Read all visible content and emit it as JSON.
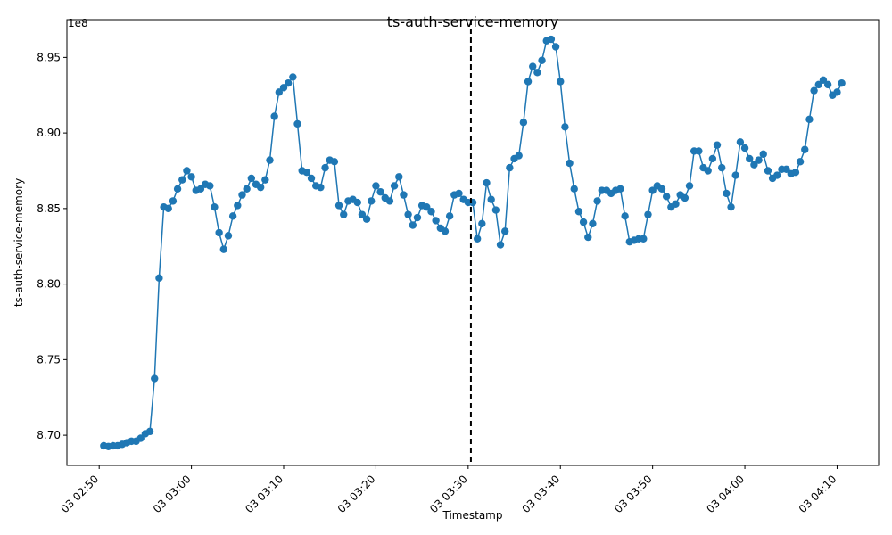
{
  "chart_data": {
    "type": "line",
    "title": "ts-auth-service-memory",
    "xlabel": "Timestamp",
    "ylabel": "ts-auth-service-memory",
    "y_scale_label": "1e8",
    "y_multiplier": 100000000,
    "x_unit": "minutes after 03 02:50",
    "xlim": [
      -3.5,
      84.5
    ],
    "ylim": [
      8.68,
      8.975
    ],
    "x_ticks": [
      0,
      10,
      20,
      30,
      40,
      50,
      60,
      70,
      80
    ],
    "x_tick_labels": [
      "03 02:50",
      "03 03:00",
      "03 03:10",
      "03 03:20",
      "03 03:30",
      "03 03:40",
      "03 03:50",
      "03 04:00",
      "03 04:10"
    ],
    "y_ticks": [
      8.7,
      8.75,
      8.8,
      8.85,
      8.9,
      8.95
    ],
    "y_tick_labels": [
      "8.70",
      "8.75",
      "8.80",
      "8.85",
      "8.90",
      "8.95"
    ],
    "vline_x": 40.3,
    "grid": false,
    "colors": {
      "series": "#1f77b4",
      "vline": "#000000"
    },
    "series": [
      {
        "name": "",
        "x": [
          0.5,
          1.0,
          1.5,
          2.0,
          2.5,
          3.0,
          3.5,
          4.0,
          4.5,
          5.0,
          5.5,
          6.0,
          6.5,
          7.0,
          7.5,
          8.0,
          8.5,
          9.0,
          9.5,
          10.0,
          10.5,
          11.0,
          11.5,
          12.0,
          12.5,
          13.0,
          13.5,
          14.0,
          14.5,
          15.0,
          15.5,
          16.0,
          16.5,
          17.0,
          17.5,
          18.0,
          18.5,
          19.0,
          19.5,
          20.0,
          20.5,
          21.0,
          21.5,
          22.0,
          22.5,
          23.0,
          23.5,
          24.0,
          24.5,
          25.0,
          25.5,
          26.0,
          26.5,
          27.0,
          27.5,
          28.0,
          28.5,
          29.0,
          29.5,
          30.0,
          30.5,
          31.0,
          31.5,
          32.0,
          32.5,
          33.0,
          33.5,
          34.0,
          34.5,
          35.0,
          35.5,
          36.0,
          36.5,
          37.0,
          37.5,
          38.0,
          38.5,
          39.0,
          39.5,
          40.0,
          40.5,
          41.0,
          41.5,
          42.0,
          42.5,
          43.0,
          43.5,
          44.0,
          44.5,
          45.0,
          45.5,
          46.0,
          46.5,
          47.0,
          47.5,
          48.0,
          48.5,
          49.0,
          49.5,
          50.0,
          50.5,
          51.0,
          51.5,
          52.0,
          52.5,
          53.0,
          53.5,
          54.0,
          54.5,
          55.0,
          55.5,
          56.0,
          56.5,
          57.0,
          57.5,
          58.0,
          58.5,
          59.0,
          59.5,
          60.0,
          60.5,
          61.0,
          61.5,
          62.0,
          62.5,
          63.0,
          63.5,
          64.0,
          64.5,
          65.0,
          65.5,
          66.0,
          66.5,
          67.0,
          67.5,
          68.0,
          68.5,
          69.0,
          69.5,
          70.0,
          70.5,
          71.0,
          71.5,
          72.0,
          72.5,
          73.0,
          73.5,
          74.0,
          74.5,
          75.0,
          75.5,
          76.0,
          76.5,
          77.0,
          77.5,
          78.0,
          78.5,
          79.0,
          79.5,
          80.0,
          80.5
        ],
        "y": [
          8.693,
          8.6925,
          8.693,
          8.693,
          8.694,
          8.695,
          8.696,
          8.696,
          8.698,
          8.701,
          8.7025,
          8.7375,
          8.804,
          8.851,
          8.85,
          8.855,
          8.863,
          8.869,
          8.875,
          8.871,
          8.862,
          8.863,
          8.866,
          8.865,
          8.851,
          8.834,
          8.823,
          8.832,
          8.845,
          8.852,
          8.859,
          8.863,
          8.87,
          8.866,
          8.864,
          8.869,
          8.882,
          8.911,
          8.927,
          8.93,
          8.933,
          8.937,
          8.906,
          8.875,
          8.874,
          8.87,
          8.865,
          8.864,
          8.877,
          8.882,
          8.881,
          8.852,
          8.846,
          8.855,
          8.856,
          8.854,
          8.846,
          8.843,
          8.855,
          8.865,
          8.861,
          8.857,
          8.855,
          8.865,
          8.871,
          8.859,
          8.846,
          8.839,
          8.844,
          8.852,
          8.851,
          8.848,
          8.842,
          8.837,
          8.835,
          8.845,
          8.859,
          8.86,
          8.856,
          8.854,
          8.854,
          8.83,
          8.84,
          8.867,
          8.856,
          8.849,
          8.826,
          8.835,
          8.877,
          8.883,
          8.885,
          8.907,
          8.934,
          8.944,
          8.94,
          8.948,
          8.961,
          8.962,
          8.957,
          8.934,
          8.904,
          8.88,
          8.863,
          8.848,
          8.841,
          8.831,
          8.84,
          8.855,
          8.862,
          8.862,
          8.86,
          8.862,
          8.863,
          8.845,
          8.828,
          8.829,
          8.83,
          8.83,
          8.846,
          8.862,
          8.865,
          8.863,
          8.858,
          8.851,
          8.853,
          8.859,
          8.857,
          8.865,
          8.888,
          8.888,
          8.877,
          8.875,
          8.883,
          8.892,
          8.877,
          8.86,
          8.851,
          8.872,
          8.894,
          8.89,
          8.883,
          8.879,
          8.882,
          8.886,
          8.875,
          8.87,
          8.872,
          8.876,
          8.876,
          8.873,
          8.874,
          8.881,
          8.889,
          8.909,
          8.928,
          8.932,
          8.935,
          8.932,
          8.925,
          8.927,
          8.933
        ]
      }
    ]
  }
}
